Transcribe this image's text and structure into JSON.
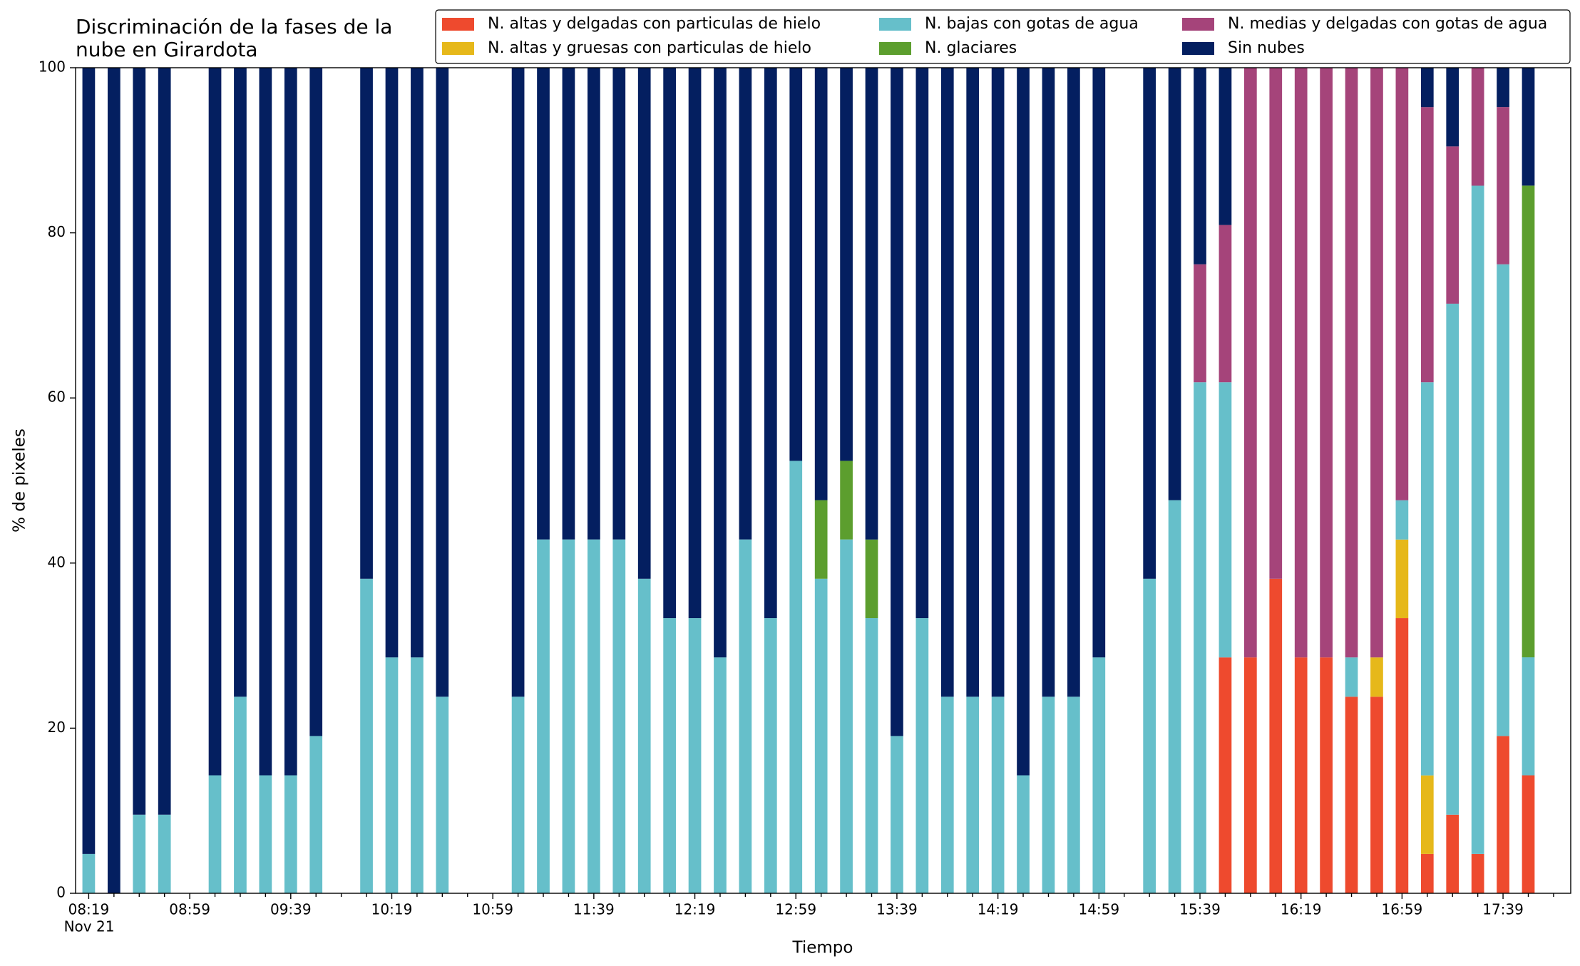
{
  "chart_data": {
    "type": "stacked_bar",
    "title": "Discriminación de la fases de la\nnube en Girardota",
    "x_label": "Tiempo",
    "y_label": "% de pixeles",
    "x_date_label": "Nov 21",
    "categories": [
      "08:19",
      null,
      null,
      null,
      "08:59",
      null,
      null,
      null,
      "09:39",
      null,
      null,
      null,
      "10:19",
      null,
      null,
      null,
      "10:59",
      null,
      null,
      null,
      "11:39",
      null,
      null,
      null,
      "12:19",
      null,
      null,
      null,
      "12:59",
      null,
      null,
      null,
      "13:39",
      null,
      null,
      null,
      "14:19",
      null,
      null,
      null,
      "14:59",
      null,
      null,
      null,
      "15:39",
      null,
      null,
      null,
      "16:19",
      null,
      null,
      null,
      "16:59",
      null,
      null,
      null,
      "17:39",
      null
    ],
    "ylim": [
      0,
      100
    ],
    "yticks": [
      0,
      20,
      40,
      60,
      80,
      100
    ],
    "series": [
      {
        "name": "N. altas y delgadas con particulas de hielo",
        "color": "#ee4a2e",
        "values": [
          0,
          0,
          0,
          0,
          0,
          0,
          0,
          0,
          0,
          0,
          0,
          0,
          0,
          0,
          0,
          0,
          0,
          0,
          0,
          0,
          0,
          0,
          0,
          0,
          0,
          0,
          0,
          0,
          0,
          0,
          0,
          0,
          0,
          0,
          0,
          0,
          0,
          0,
          0,
          0,
          0,
          0,
          0,
          0,
          0,
          28.57,
          28.57,
          38.1,
          28.57,
          28.57,
          23.81,
          23.81,
          33.33,
          4.76,
          9.52,
          4.76,
          19.05,
          14.29
        ]
      },
      {
        "name": "N. altas y gruesas con particulas de hielo",
        "color": "#e6b81a",
        "values": [
          0,
          0,
          0,
          0,
          0,
          0,
          0,
          0,
          0,
          0,
          0,
          0,
          0,
          0,
          0,
          0,
          0,
          0,
          0,
          0,
          0,
          0,
          0,
          0,
          0,
          0,
          0,
          0,
          0,
          0,
          0,
          0,
          0,
          0,
          0,
          0,
          0,
          0,
          0,
          0,
          0,
          0,
          0,
          0,
          0,
          0,
          0,
          0,
          0,
          0,
          0,
          4.76,
          9.52,
          9.52,
          0,
          0,
          0,
          0
        ]
      },
      {
        "name": "N. bajas con gotas de agua",
        "color": "#66bfca",
        "values": [
          4.76,
          0,
          9.52,
          9.52,
          0,
          14.29,
          23.81,
          14.29,
          14.29,
          19.05,
          0,
          38.1,
          28.57,
          28.57,
          23.81,
          0,
          0,
          23.81,
          42.86,
          42.86,
          42.86,
          42.86,
          38.1,
          33.33,
          33.33,
          28.57,
          42.86,
          33.33,
          52.38,
          38.1,
          42.86,
          33.33,
          19.05,
          33.33,
          23.81,
          23.81,
          23.81,
          14.29,
          23.81,
          23.81,
          28.57,
          0,
          38.1,
          47.62,
          61.9,
          33.33,
          0,
          0,
          0,
          0,
          4.76,
          0,
          4.76,
          47.62,
          61.9,
          80.95,
          57.14,
          14.29
        ]
      },
      {
        "name": "N. glaciares",
        "color": "#5c9e2e",
        "values": [
          0,
          0,
          0,
          0,
          0,
          0,
          0,
          0,
          0,
          0,
          0,
          0,
          0,
          0,
          0,
          0,
          0,
          0,
          0,
          0,
          0,
          0,
          0,
          0,
          0,
          0,
          0,
          0,
          0,
          9.52,
          9.52,
          9.52,
          0,
          0,
          0,
          0,
          0,
          0,
          0,
          0,
          0,
          0,
          0,
          0,
          0,
          0,
          0,
          0,
          0,
          0,
          0,
          0,
          0,
          0,
          0,
          0,
          0,
          57.14
        ]
      },
      {
        "name": "N. medias y delgadas con gotas de agua",
        "color": "#a5447a",
        "values": [
          0,
          0,
          0,
          0,
          0,
          0,
          0,
          0,
          0,
          0,
          0,
          0,
          0,
          0,
          0,
          0,
          0,
          0,
          0,
          0,
          0,
          0,
          0,
          0,
          0,
          0,
          0,
          0,
          0,
          0,
          0,
          0,
          0,
          0,
          0,
          0,
          0,
          0,
          0,
          0,
          0,
          0,
          0,
          0,
          14.29,
          19.05,
          71.43,
          61.9,
          71.43,
          71.43,
          71.43,
          71.43,
          52.38,
          33.33,
          19.05,
          14.29,
          19.05,
          0
        ]
      },
      {
        "name": "Sin nubes",
        "color": "#041f60",
        "values": [
          95.24,
          100,
          90.48,
          90.48,
          0,
          85.71,
          76.19,
          85.71,
          85.71,
          80.95,
          0,
          61.9,
          71.43,
          71.43,
          76.19,
          0,
          0,
          76.19,
          57.14,
          57.14,
          57.14,
          57.14,
          61.9,
          66.67,
          66.67,
          71.43,
          57.14,
          66.67,
          47.62,
          52.38,
          47.62,
          57.14,
          80.95,
          66.67,
          76.19,
          76.19,
          76.19,
          85.71,
          76.19,
          76.19,
          71.43,
          0,
          61.9,
          52.38,
          23.81,
          19.05,
          0,
          0,
          0,
          0,
          0,
          0,
          0,
          4.76,
          9.52,
          0,
          4.76,
          14.29
        ]
      }
    ]
  }
}
